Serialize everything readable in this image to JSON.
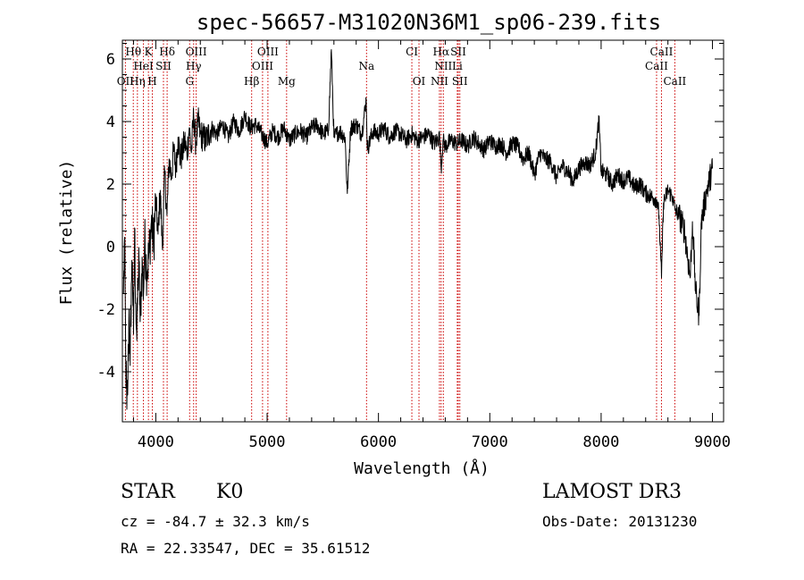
{
  "chart_data": {
    "type": "line",
    "title": "spec-56657-M31020N36M1_sp06-239.fits",
    "xlabel": "Wavelength (Å)",
    "ylabel": "Flux (relative)",
    "xlim": [
      3700,
      9100
    ],
    "ylim": [
      -5.6,
      6.6
    ],
    "xticks": [
      4000,
      5000,
      6000,
      7000,
      8000,
      9000
    ],
    "yticks": [
      -4,
      -2,
      0,
      2,
      4,
      6
    ],
    "grid": false,
    "colors": {
      "spectrum": "#000000",
      "lines": "#cc0000"
    },
    "series": [
      {
        "x": [
          3710,
          3720,
          3730,
          3740,
          3750,
          3760,
          3770,
          3780,
          3790,
          3800,
          3810,
          3820,
          3830,
          3840,
          3850,
          3860,
          3870,
          3880,
          3890,
          3900,
          3920,
          3940,
          3960,
          3980,
          4000,
          4020,
          4040,
          4060,
          4080,
          4100,
          4120,
          4140,
          4160,
          4180,
          4200,
          4220,
          4240,
          4260,
          4280,
          4300,
          4320,
          4340,
          4360,
          4380,
          4400,
          4450,
          4500,
          4550,
          4600,
          4650,
          4700,
          4750,
          4800,
          4850,
          4900,
          4950,
          5000,
          5050,
          5100,
          5150,
          5200,
          5250,
          5300,
          5350,
          5400,
          5450,
          5500,
          5550,
          5577,
          5600,
          5650,
          5700,
          5720,
          5750,
          5800,
          5850,
          5890,
          5900,
          5950,
          6000,
          6050,
          6100,
          6150,
          6200,
          6250,
          6300,
          6350,
          6400,
          6450,
          6500,
          6550,
          6563,
          6580,
          6600,
          6650,
          6700,
          6750,
          6800,
          6850,
          6900,
          6950,
          7000,
          7050,
          7100,
          7150,
          7200,
          7250,
          7300,
          7350,
          7400,
          7450,
          7500,
          7550,
          7600,
          7650,
          7700,
          7750,
          7800,
          7850,
          7900,
          7950,
          7980,
          8000,
          8050,
          8100,
          8150,
          8200,
          8250,
          8300,
          8350,
          8400,
          8450,
          8500,
          8520,
          8542,
          8560,
          8600,
          8640,
          8662,
          8700,
          8750,
          8800,
          8820,
          8850,
          8880,
          8900,
          8950,
          9000
        ],
        "y": [
          -1.5,
          0.3,
          -3.5,
          -5.2,
          -4.2,
          -2.0,
          -3.8,
          -1.2,
          -0.5,
          -2.8,
          0.6,
          -1.8,
          -3.0,
          -1.0,
          -0.6,
          -2.4,
          -1.2,
          -0.5,
          -1.5,
          0.2,
          -0.8,
          -0.2,
          0.8,
          0.1,
          1.5,
          0.4,
          1.8,
          -0.1,
          2.4,
          1.0,
          2.8,
          2.2,
          3.1,
          2.5,
          3.5,
          2.8,
          3.0,
          3.4,
          2.9,
          3.8,
          3.0,
          4.2,
          3.3,
          4.0,
          3.6,
          3.4,
          3.8,
          3.6,
          3.9,
          3.5,
          4.0,
          3.7,
          4.2,
          3.8,
          3.9,
          3.6,
          3.3,
          3.7,
          3.5,
          3.8,
          3.4,
          3.6,
          3.7,
          3.5,
          3.8,
          3.9,
          3.6,
          3.7,
          6.3,
          3.5,
          3.7,
          3.5,
          1.7,
          3.8,
          3.9,
          3.6,
          4.7,
          3.1,
          3.7,
          3.6,
          3.8,
          3.5,
          3.7,
          3.6,
          3.4,
          3.6,
          3.4,
          3.5,
          3.6,
          3.3,
          3.5,
          2.5,
          3.4,
          3.2,
          3.4,
          3.3,
          3.4,
          3.2,
          3.5,
          3.3,
          3.1,
          3.4,
          3.2,
          3.3,
          3.0,
          3.3,
          3.2,
          2.8,
          3.0,
          2.3,
          3.0,
          2.8,
          2.7,
          2.2,
          2.6,
          2.4,
          2.1,
          2.5,
          2.7,
          2.6,
          3.0,
          4.1,
          2.4,
          2.3,
          2.0,
          2.3,
          2.1,
          2.2,
          1.9,
          2.0,
          1.7,
          1.6,
          1.5,
          1.0,
          -1.0,
          1.4,
          1.8,
          1.6,
          1.2,
          1.0,
          0.5,
          -1.0,
          0.8,
          -1.5,
          -2.2,
          0.8,
          1.8,
          2.5
        ]
      }
    ],
    "line_labels": [
      {
        "text": "Hθ",
        "x": 3798,
        "row": 1
      },
      {
        "text": "K",
        "x": 3934,
        "row": 1
      },
      {
        "text": "Hδ",
        "x": 4102,
        "row": 1
      },
      {
        "text": "OIII",
        "x": 4363,
        "row": 1
      },
      {
        "text": "OIII",
        "x": 5007,
        "row": 1
      },
      {
        "text": "CI",
        "x": 6300,
        "row": 1
      },
      {
        "text": "Hα",
        "x": 6563,
        "row": 1
      },
      {
        "text": "SII",
        "x": 6717,
        "row": 1
      },
      {
        "text": "CaII",
        "x": 8542,
        "row": 1
      },
      {
        "text": "HeI",
        "x": 3889,
        "row": 2
      },
      {
        "text": "SII",
        "x": 4069,
        "row": 2
      },
      {
        "text": "Hγ",
        "x": 4340,
        "row": 2
      },
      {
        "text": "OIII",
        "x": 4959,
        "row": 2
      },
      {
        "text": "Na",
        "x": 5893,
        "row": 2
      },
      {
        "text": "NII",
        "x": 6583,
        "row": 2
      },
      {
        "text": "Li",
        "x": 6708,
        "row": 2
      },
      {
        "text": "CaII",
        "x": 8498,
        "row": 2
      },
      {
        "text": "OII",
        "x": 3727,
        "row": 3
      },
      {
        "text": "Hη",
        "x": 3835,
        "row": 3
      },
      {
        "text": "H",
        "x": 3969,
        "row": 3
      },
      {
        "text": "G",
        "x": 4304,
        "row": 3
      },
      {
        "text": "Hβ",
        "x": 4861,
        "row": 3
      },
      {
        "text": "Mg",
        "x": 5175,
        "row": 3
      },
      {
        "text": "OI",
        "x": 6364,
        "row": 3
      },
      {
        "text": "NII",
        "x": 6548,
        "row": 3
      },
      {
        "text": "SII",
        "x": 6731,
        "row": 3
      },
      {
        "text": "CaII",
        "x": 8662,
        "row": 3
      }
    ]
  },
  "footer": {
    "object_class": "STAR",
    "subclass": "K0",
    "survey": "LAMOST DR3",
    "redshift": "cz = -84.7 ± 32.3 km/s",
    "obs_date": "Obs-Date: 20131230",
    "coords": "RA =  22.33547, DEC =  35.61512"
  }
}
